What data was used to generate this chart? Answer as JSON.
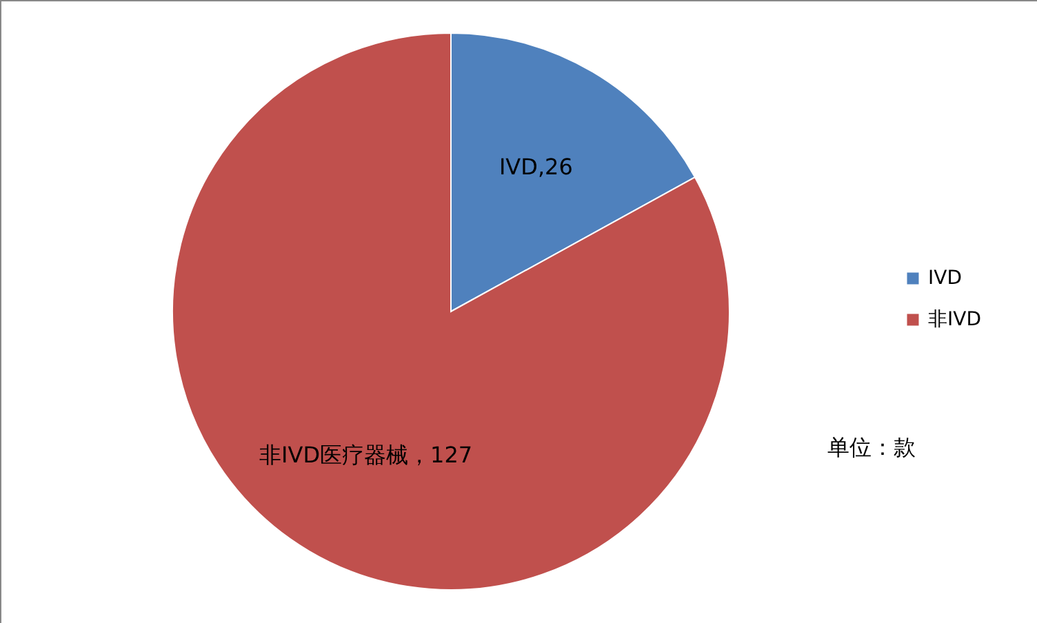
{
  "chart_data": {
    "type": "pie",
    "categories": [
      "IVD",
      "非IVD"
    ],
    "values": [
      26,
      127
    ],
    "colors": [
      "#4f81bd",
      "#c0504d"
    ],
    "value_labels": [
      "IVD,26",
      "非IVD医疗器械，127"
    ],
    "legend": "right",
    "annotations": [
      "单位：款"
    ]
  }
}
